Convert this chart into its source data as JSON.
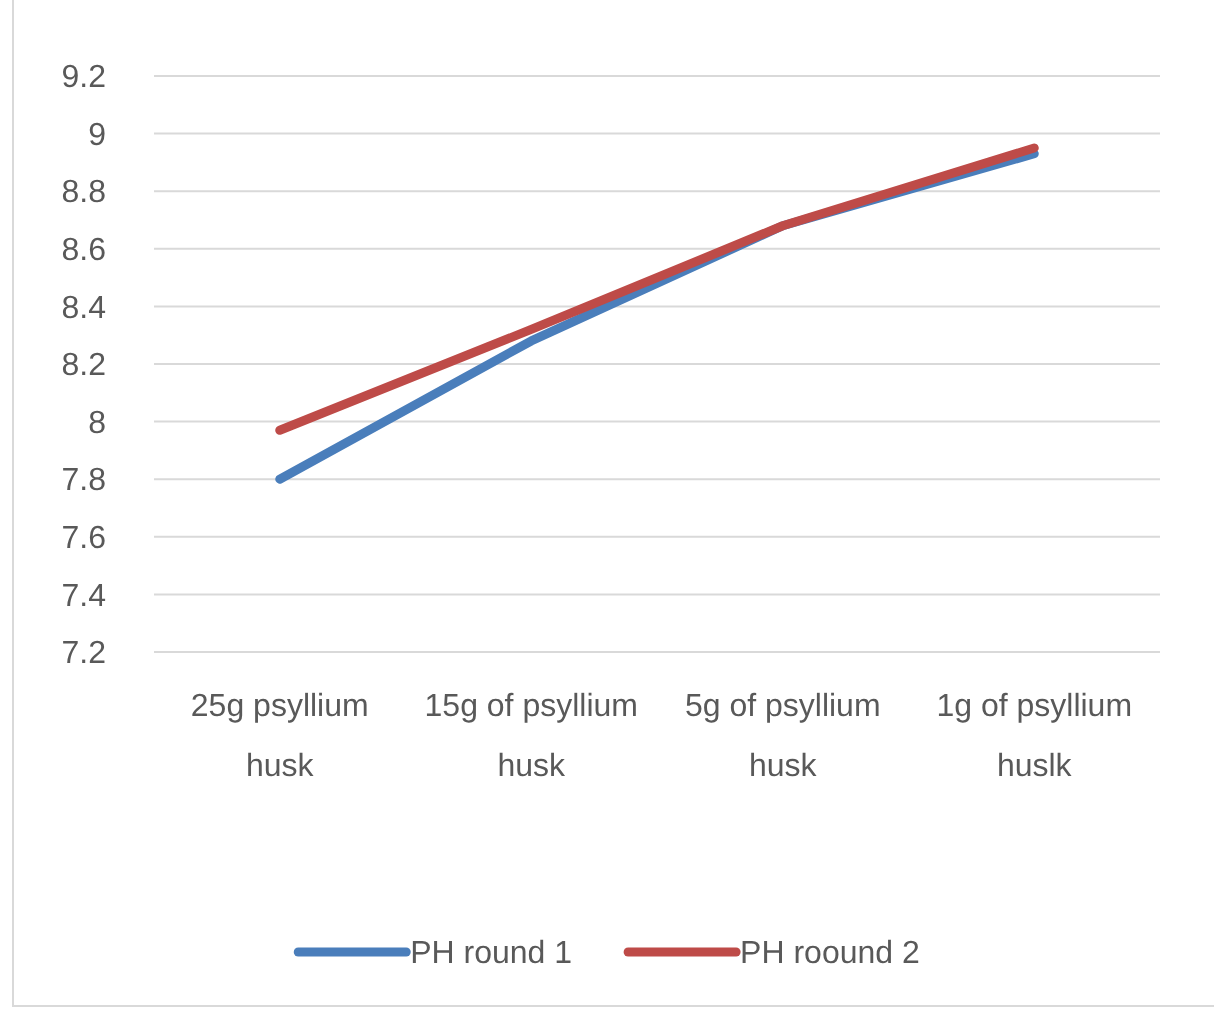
{
  "chart_data": {
    "type": "line",
    "categories": [
      "25g psyllium husk",
      "15g of psyllium husk",
      "5g of psyllium husk",
      "1g of psyllium huslk"
    ],
    "series": [
      {
        "name": "PH round 1",
        "color": "#4a7ebb",
        "values": [
          7.8,
          8.28,
          8.68,
          8.93
        ]
      },
      {
        "name": "PH roound 2",
        "color": "#be4b48",
        "values": [
          7.97,
          8.32,
          8.68,
          8.95
        ]
      }
    ],
    "ylim": [
      7.2,
      9.2
    ],
    "yticks": [
      7.2,
      7.4,
      7.6,
      7.8,
      8,
      8.2,
      8.4,
      8.6,
      8.8,
      9,
      9.2
    ],
    "grid": "y",
    "legend": "bottom",
    "marker": "none",
    "line_style": "solid"
  }
}
